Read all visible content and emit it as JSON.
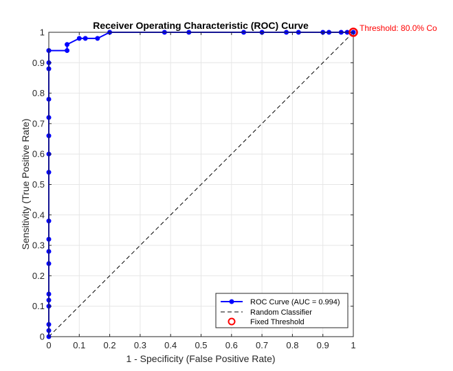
{
  "chart_data": {
    "type": "line",
    "title": "Receiver Operating Characteristic (ROC) Curve",
    "xlabel": "1 - Specificity (False Positive Rate)",
    "ylabel": "Sensitivity (True Positive Rate)",
    "xlim": [
      0,
      1
    ],
    "ylim": [
      0,
      1
    ],
    "xticks": [
      0,
      0.1,
      0.2,
      0.3,
      0.4,
      0.5,
      0.6,
      0.7,
      0.8,
      0.9,
      1
    ],
    "yticks": [
      0,
      0.1,
      0.2,
      0.3,
      0.4,
      0.5,
      0.6,
      0.7,
      0.8,
      0.9,
      1
    ],
    "tick_labels": [
      "0",
      "0.1",
      "0.2",
      "0.3",
      "0.4",
      "0.5",
      "0.6",
      "0.7",
      "0.8",
      "0.9",
      "1"
    ],
    "grid": true,
    "legend_position": "bottom-right",
    "series": [
      {
        "name": "ROC Curve (AUC = 0.994)",
        "color": "#0000ff",
        "style": "solid-with-circle-markers",
        "x": [
          0,
          0,
          0,
          0,
          0,
          0,
          0,
          0,
          0,
          0,
          0,
          0,
          0,
          0,
          0,
          0,
          0,
          0,
          0,
          0.06,
          0.06,
          0.1,
          0.12,
          0.16,
          0.2,
          0.38,
          0.46,
          0.64,
          0.7,
          0.78,
          0.82,
          0.9,
          0.92,
          0.96,
          0.98,
          1
        ],
        "y": [
          0,
          0.02,
          0.04,
          0.1,
          0.12,
          0.14,
          0.24,
          0.28,
          0.32,
          0.38,
          0.54,
          0.6,
          0.66,
          0.72,
          0.78,
          0.88,
          0.9,
          0.94,
          0.94,
          0.94,
          0.96,
          0.98,
          0.98,
          0.98,
          1,
          1,
          1,
          1,
          1,
          1,
          1,
          1,
          1,
          1,
          1,
          1
        ]
      },
      {
        "name": "Random Classifier",
        "color": "#000000",
        "style": "dashed",
        "x": [
          0,
          1
        ],
        "y": [
          0,
          1
        ]
      },
      {
        "name": "Fixed Threshold",
        "color": "#ff0000",
        "style": "open-circle-marker",
        "x": [
          1
        ],
        "y": [
          1
        ]
      }
    ],
    "annotations": [
      {
        "text": "Threshold: 80.0% Co",
        "x": 1,
        "y": 1,
        "color": "#ff0000"
      }
    ]
  }
}
